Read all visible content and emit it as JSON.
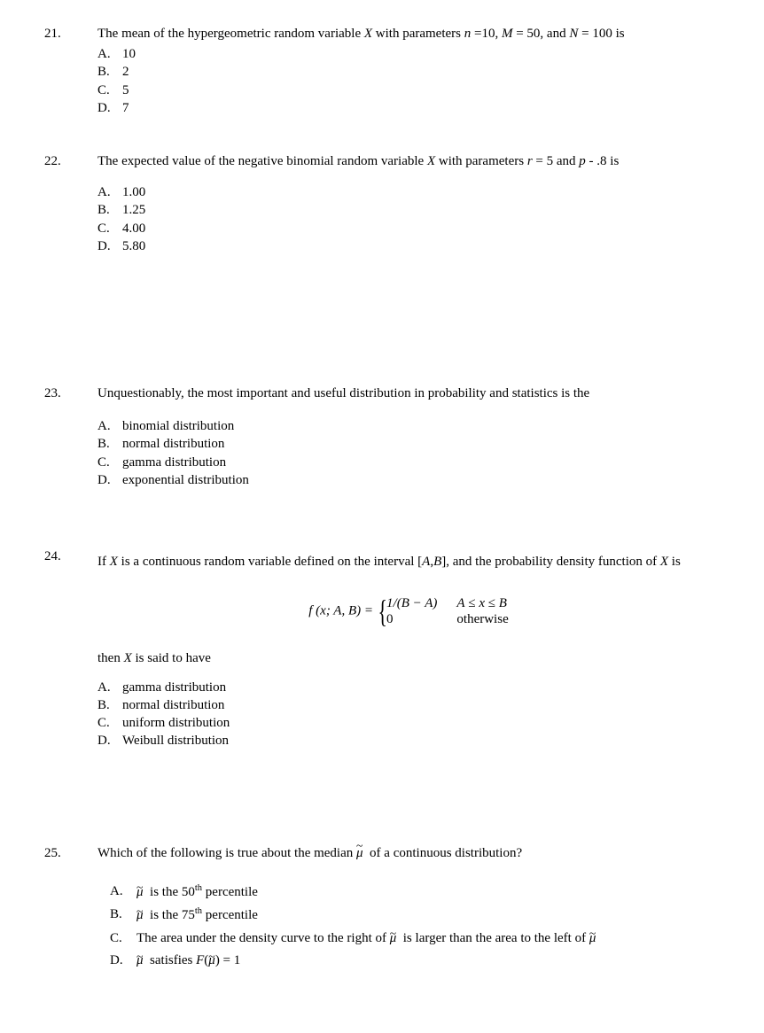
{
  "questions": [
    {
      "number": "21.",
      "stem_html": "The mean of the hypergeometric random variable <span class='italic'>X</span> with parameters <span class='italic'>n</span> =10, <span class='italic'>M</span> = 50, and <span class='italic'>N</span> = 100 is",
      "options": [
        {
          "letter": "A.",
          "text": "10"
        },
        {
          "letter": "B.",
          "text": "2"
        },
        {
          "letter": "C.",
          "text": "5"
        },
        {
          "letter": "D.",
          "text": "7"
        }
      ],
      "gap_after": 14
    },
    {
      "number": "22.",
      "stem_html": "The expected value of the negative binomial random variable <span class='italic'>X</span> with parameters <span class='italic'>r</span> = 5 and <span class='italic'>p</span> - .8 is",
      "pre_opt_gap": 10,
      "options": [
        {
          "letter": "A.",
          "text": "1.00"
        },
        {
          "letter": "B.",
          "text": "1.25"
        },
        {
          "letter": "C.",
          "text": "4.00"
        },
        {
          "letter": "D.",
          "text": "5.80"
        }
      ],
      "gap_after": 120
    },
    {
      "number": "23.",
      "stem_html": "Unquestionably, the most important and useful distribution in probability and statistics is the",
      "pre_opt_gap": 12,
      "options": [
        {
          "letter": "A.",
          "text": "binomial distribution"
        },
        {
          "letter": "B.",
          "text": "normal distribution"
        },
        {
          "letter": "C.",
          "text": "gamma distribution"
        },
        {
          "letter": "D.",
          "text": "exponential distribution"
        }
      ],
      "gap_after": 40
    },
    {
      "number": "24.",
      "stem_justify": true,
      "stem_html": "<div class='stem-inner'>If <span class='italic'>X</span> is a continuous random variable defined on the interval [<span class='italic'>A</span>,<span class='italic'>B</span>], and the probability density function of <span class='italic'>X</span> is</div>",
      "formula": {
        "lhs": "f (x; A, B) =",
        "piece1": "1/(<span class='italic'>B</span> − <span class='italic'>A</span>)",
        "piece2": "0",
        "cond1": "<span class='italic'>A</span> ≤ <span class='italic'>x</span> ≤ <span class='italic'>B</span>",
        "cond2": "otherwise"
      },
      "post_stem": "then <span class='italic'>X</span> is said to have",
      "pre_opt_gap": 12,
      "options": [
        {
          "letter": "A.",
          "text": "gamma distribution"
        },
        {
          "letter": "B.",
          "text": "normal distribution"
        },
        {
          "letter": "C.",
          "text": "uniform distribution"
        },
        {
          "letter": "D.",
          "text": "Weibull distribution"
        }
      ],
      "gap_after": 80
    },
    {
      "number": "25.",
      "stem_html": "Which of the following is true about the median <span class='mtilde'>μ</span>&nbsp; of a continuous distribution?",
      "pre_opt_gap": 16,
      "opts_indent": true,
      "options": [
        {
          "letter": "A.",
          "html": "<span class='mtilde'>μ</span>&nbsp; is the 50<sup>th</sup> percentile"
        },
        {
          "letter": "B.",
          "html": "<span class='mtilde'>μ</span>&nbsp; is the 75<sup>th</sup> percentile"
        },
        {
          "letter": "C.",
          "html": "The area under the density curve to the right of <span class='mtilde'>μ</span>&nbsp; is larger than the area to the left of <span class='mtilde'>μ</span>"
        },
        {
          "letter": "D.",
          "html": "<span class='mtilde'>μ</span>&nbsp; satisfies <span class='italic'>F</span>(<span class='mtilde'>μ</span>) = 1"
        }
      ],
      "opt_line_height": 1.7,
      "gap_after": 0
    }
  ]
}
